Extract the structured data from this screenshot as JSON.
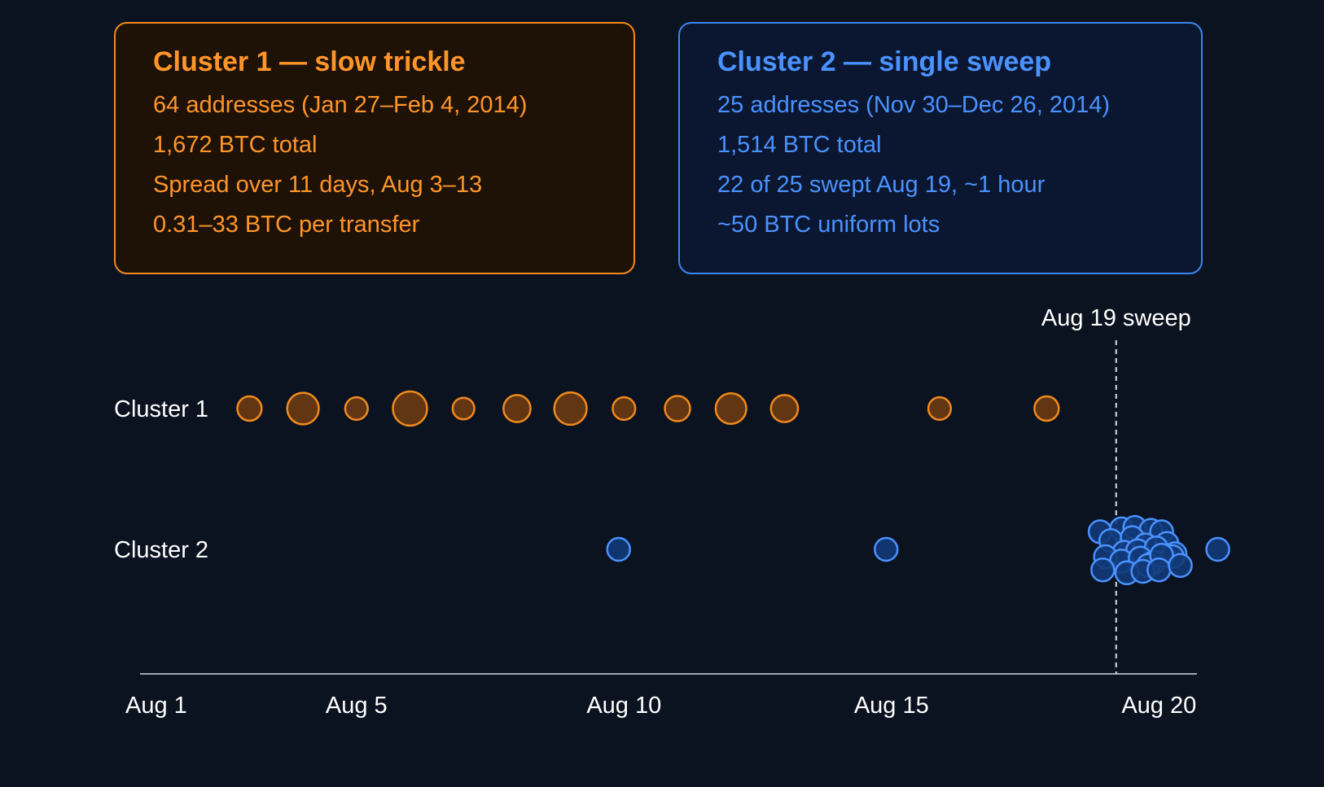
{
  "panels": [
    {
      "title": "Cluster 1 — slow trickle",
      "lines": [
        "64 addresses (Jan 27–Feb 4, 2014)",
        "1,672 BTC total",
        "Spread over 11 days, Aug 3–13",
        "0.31–33 BTC per transfer"
      ],
      "color": "#ff9529"
    },
    {
      "title": "Cluster 2 — single sweep",
      "lines": [
        "25 addresses (Nov 30–Dec 26, 2014)",
        "1,514 BTC total",
        "22 of 25 swept Aug 19, ~1 hour",
        "~50 BTC uniform lots"
      ],
      "color": "#4a92ff"
    }
  ],
  "chart_data": {
    "type": "scatter",
    "x_axis": {
      "range_days": [
        1,
        20.1
      ],
      "ticks": [
        {
          "value": 1,
          "label": "Aug 1"
        },
        {
          "value": 5,
          "label": "Aug 5"
        },
        {
          "value": 10,
          "label": "Aug 10"
        },
        {
          "value": 15,
          "label": "Aug 15"
        },
        {
          "value": 20,
          "label": "Aug 20"
        }
      ]
    },
    "rows": [
      "Cluster 1",
      "Cluster 2"
    ],
    "annotation": {
      "label": "Aug 19 sweep",
      "x": 19.2
    },
    "series": [
      {
        "row": "Cluster 1",
        "color": "#f08a1c",
        "fill": "#6b3a12",
        "points": [
          {
            "x": 3.0,
            "size": 0.45
          },
          {
            "x": 4.0,
            "size": 0.85
          },
          {
            "x": 5.0,
            "size": 0.35
          },
          {
            "x": 6.0,
            "size": 1.0
          },
          {
            "x": 7.0,
            "size": 0.3
          },
          {
            "x": 8.0,
            "size": 0.6
          },
          {
            "x": 9.0,
            "size": 0.9
          },
          {
            "x": 10.0,
            "size": 0.35
          },
          {
            "x": 11.0,
            "size": 0.5
          },
          {
            "x": 12.0,
            "size": 0.8
          },
          {
            "x": 13.0,
            "size": 0.6
          },
          {
            "x": 15.9,
            "size": 0.35
          },
          {
            "x": 17.9,
            "size": 0.45
          }
        ]
      },
      {
        "row": "Cluster 2",
        "color": "#4a92ff",
        "fill": "#123a78",
        "points": [
          {
            "x": 9.9,
            "dy": 0
          },
          {
            "x": 14.9,
            "dy": 0
          },
          {
            "x": 18.9,
            "dy": -0.6
          },
          {
            "x": 19.3,
            "dy": -0.7
          },
          {
            "x": 19.55,
            "dy": -0.75
          },
          {
            "x": 19.85,
            "dy": -0.65
          },
          {
            "x": 20.05,
            "dy": -0.6
          },
          {
            "x": 19.1,
            "dy": -0.3
          },
          {
            "x": 19.5,
            "dy": -0.4
          },
          {
            "x": 19.75,
            "dy": -0.15
          },
          {
            "x": 20.15,
            "dy": -0.2
          },
          {
            "x": 19.35,
            "dy": 0.1
          },
          {
            "x": 19.6,
            "dy": 0.05
          },
          {
            "x": 19.95,
            "dy": -0.05
          },
          {
            "x": 20.3,
            "dy": 0.15
          },
          {
            "x": 19.0,
            "dy": 0.25
          },
          {
            "x": 19.3,
            "dy": 0.4
          },
          {
            "x": 19.65,
            "dy": 0.3
          },
          {
            "x": 19.9,
            "dy": 0.45
          },
          {
            "x": 20.25,
            "dy": 0.25
          },
          {
            "x": 19.8,
            "dy": 0.55
          },
          {
            "x": 20.05,
            "dy": 0.2
          },
          {
            "x": 18.95,
            "dy": 0.7
          },
          {
            "x": 19.4,
            "dy": 0.8
          },
          {
            "x": 19.7,
            "dy": 0.75
          },
          {
            "x": 20.0,
            "dy": 0.7
          },
          {
            "x": 20.4,
            "dy": 0.55
          },
          {
            "x": 21.1,
            "dy": 0
          }
        ]
      }
    ]
  }
}
